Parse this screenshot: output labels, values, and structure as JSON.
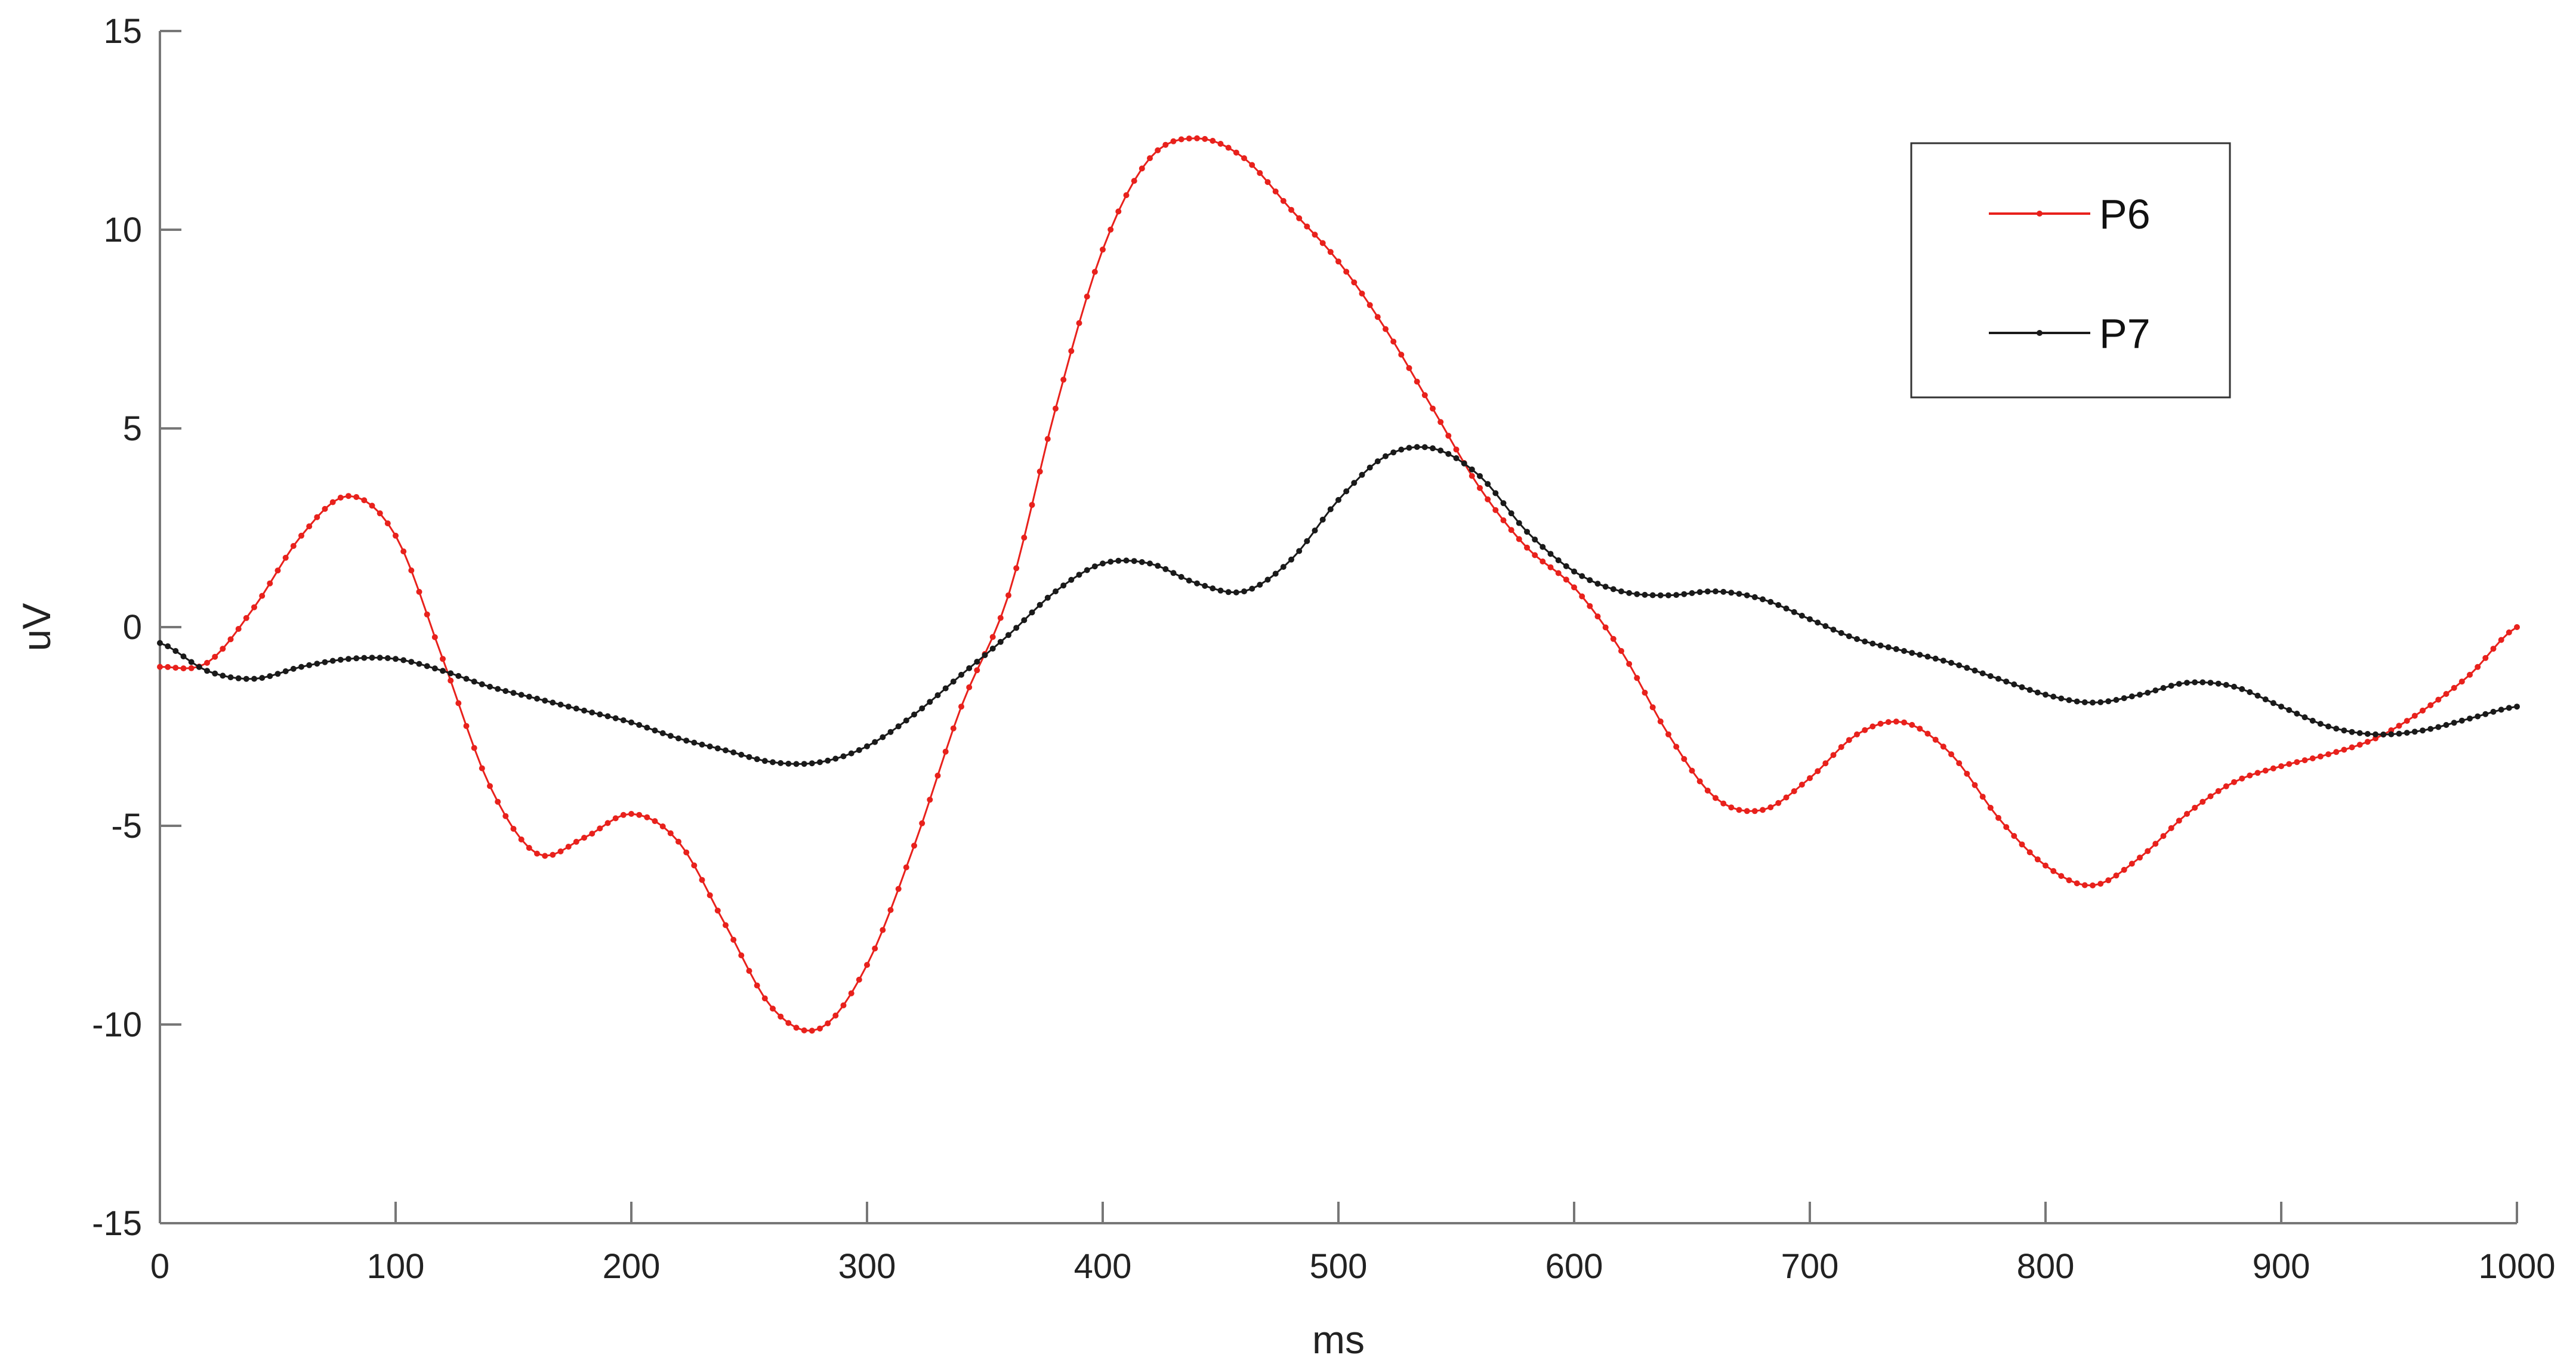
{
  "chart_data": {
    "type": "line",
    "title": "",
    "xlabel": "ms",
    "ylabel": "uV",
    "xlim": [
      0,
      1000
    ],
    "ylim": [
      -15,
      15
    ],
    "xticks": [
      0,
      100,
      200,
      300,
      400,
      500,
      600,
      700,
      800,
      900,
      1000
    ],
    "xtick_labels": [
      "0",
      "100",
      "200",
      "300",
      "400",
      "500",
      "600",
      "700",
      "800",
      "900",
      "1000"
    ],
    "yticks": [
      15,
      10,
      5,
      0,
      -5,
      -10,
      -15
    ],
    "ytick_labels": [
      "15",
      "10",
      "5",
      "0",
      "-5",
      "-10",
      "-15"
    ],
    "grid": false,
    "legend_position": "top-right",
    "marker": "dot",
    "series": [
      {
        "name": "P6",
        "color": "#e8211c",
        "x": [
          0,
          20,
          40,
          60,
          80,
          100,
          120,
          140,
          160,
          180,
          200,
          220,
          240,
          260,
          280,
          300,
          320,
          340,
          360,
          380,
          400,
          420,
          440,
          460,
          480,
          500,
          520,
          540,
          560,
          580,
          600,
          620,
          640,
          660,
          680,
          700,
          720,
          740,
          760,
          780,
          800,
          820,
          840,
          860,
          880,
          900,
          920,
          940,
          960,
          980,
          1000
        ],
        "values": [
          -1.0,
          -0.9,
          0.5,
          2.3,
          3.3,
          2.3,
          -0.8,
          -4.0,
          -5.7,
          -5.3,
          -4.7,
          -5.4,
          -7.5,
          -9.6,
          -10.1,
          -8.5,
          -5.5,
          -2.0,
          0.8,
          5.5,
          9.5,
          11.8,
          12.3,
          11.8,
          10.5,
          9.2,
          7.5,
          5.5,
          3.5,
          2.0,
          1.0,
          -0.6,
          -2.7,
          -4.3,
          -4.6,
          -3.8,
          -2.7,
          -2.4,
          -3.2,
          -4.8,
          -6.0,
          -6.5,
          -5.8,
          -4.7,
          -3.9,
          -3.5,
          -3.2,
          -2.8,
          -2.1,
          -1.2,
          0.0
        ]
      },
      {
        "name": "P7",
        "color": "#1a1a1a",
        "x": [
          0,
          20,
          40,
          60,
          80,
          100,
          120,
          140,
          160,
          180,
          200,
          220,
          240,
          260,
          280,
          300,
          320,
          340,
          360,
          380,
          400,
          420,
          440,
          460,
          480,
          500,
          520,
          540,
          560,
          580,
          600,
          620,
          640,
          660,
          680,
          700,
          720,
          740,
          760,
          780,
          800,
          820,
          840,
          860,
          880,
          900,
          920,
          940,
          960,
          980,
          1000
        ],
        "values": [
          -0.4,
          -1.1,
          -1.3,
          -1.0,
          -0.8,
          -0.8,
          -1.1,
          -1.5,
          -1.8,
          -2.1,
          -2.4,
          -2.8,
          -3.1,
          -3.4,
          -3.4,
          -3.0,
          -2.2,
          -1.2,
          -0.2,
          0.9,
          1.6,
          1.6,
          1.1,
          0.9,
          1.7,
          3.2,
          4.3,
          4.5,
          3.8,
          2.4,
          1.4,
          0.9,
          0.8,
          0.9,
          0.7,
          0.2,
          -0.3,
          -0.6,
          -0.9,
          -1.3,
          -1.7,
          -1.9,
          -1.7,
          -1.4,
          -1.5,
          -2.0,
          -2.5,
          -2.7,
          -2.6,
          -2.3,
          -2.0
        ]
      }
    ]
  }
}
